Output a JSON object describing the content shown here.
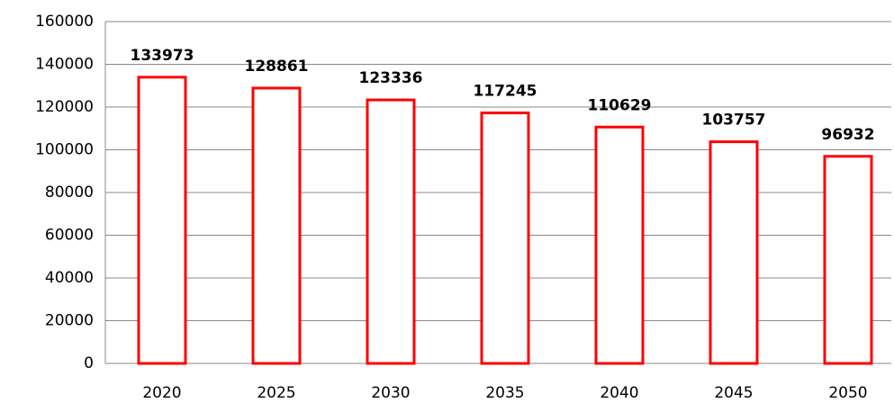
{
  "chart_data": {
    "type": "bar",
    "categories": [
      "2020",
      "2025",
      "2030",
      "2035",
      "2040",
      "2045",
      "2050"
    ],
    "values": [
      133973,
      128861,
      123336,
      117245,
      110629,
      103757,
      96932
    ],
    "color": "#ff0000",
    "ylim": [
      0,
      160000
    ],
    "yticks": [
      0,
      20000,
      40000,
      60000,
      80000,
      100000,
      120000,
      140000,
      160000
    ],
    "grid": true
  }
}
